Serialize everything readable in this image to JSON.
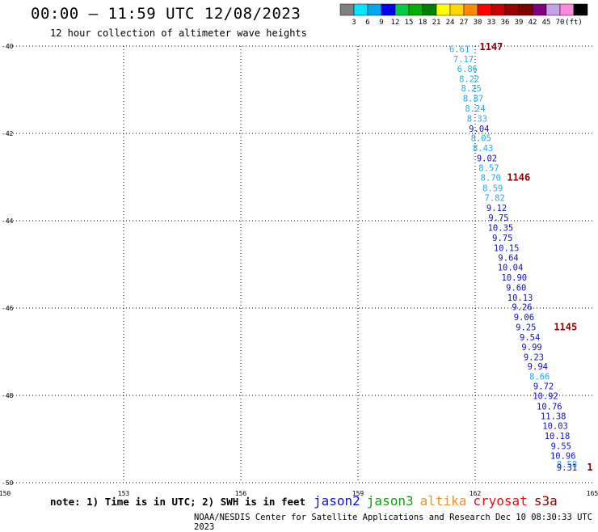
{
  "title": "00:00 – 11:59 UTC 12/08/2023",
  "subtitle": "12 hour collection of altimeter wave heights",
  "note": "note: 1) Time is in UTC; 2) SWH is in feet",
  "credit": "NOAA/NESDIS Center for Satellite Applications and Research   Dec 10 08:30:33 UTC 2023",
  "satellites": [
    {
      "name": "jason2",
      "color": "#1010d0"
    },
    {
      "name": "jason3",
      "color": "#10a010"
    },
    {
      "name": "altika",
      "color": "#f09020"
    },
    {
      "name": "cryosat",
      "color": "#e01010"
    },
    {
      "name": "s3a",
      "color": "#8b0000"
    }
  ],
  "colorscale": {
    "labels": [
      "3",
      "6",
      "9",
      "12",
      "15",
      "18",
      "21",
      "24",
      "27",
      "30",
      "33",
      "36",
      "39",
      "42",
      "45",
      "70",
      "(ft)"
    ],
    "colors": [
      "#808080",
      "#00e5ff",
      "#00a8f0",
      "#0000ff",
      "#00cc44",
      "#00b000",
      "#008000",
      "#ffff00",
      "#ffd700",
      "#ff8c00",
      "#ff0000",
      "#cc0000",
      "#990000",
      "#800000",
      "#800080",
      "#c8a0e8",
      "#ff88dd",
      "#000000"
    ]
  },
  "chart_data": {
    "type": "scatter",
    "xlabel": "",
    "ylabel": "",
    "xlim": [
      150,
      165
    ],
    "ylim": [
      -50,
      -40
    ],
    "x_ticks": [
      150,
      153,
      156,
      159,
      162,
      165
    ],
    "y_ticks": [
      -40,
      -42,
      -44,
      -46,
      -48,
      -50
    ],
    "x_tick_labels": [
      "150",
      "153",
      "156",
      "159",
      "162",
      "165"
    ],
    "y_tick_labels": [
      "-40",
      "-42",
      "-44",
      "-46",
      "-48",
      "-50"
    ],
    "grid": true,
    "series": [
      {
        "points": [
          {
            "lon": 161.6,
            "lat": -40.14,
            "label": "6.61",
            "color": "#22aaee"
          },
          {
            "lon": 161.7,
            "lat": -40.37,
            "label": "7.17",
            "color": "#22aaee"
          },
          {
            "lon": 161.8,
            "lat": -40.59,
            "label": "6.86",
            "color": "#22aaee"
          },
          {
            "lon": 161.85,
            "lat": -40.82,
            "label": "8.22",
            "color": "#22aaee"
          },
          {
            "lon": 161.9,
            "lat": -41.04,
            "label": "8.25",
            "color": "#22aaee"
          },
          {
            "lon": 161.95,
            "lat": -41.27,
            "label": "8.87",
            "color": "#22aaee"
          },
          {
            "lon": 162.0,
            "lat": -41.5,
            "label": "8.24",
            "color": "#22aaee"
          },
          {
            "lon": 162.05,
            "lat": -41.73,
            "label": "8.33",
            "color": "#22aaee"
          },
          {
            "lon": 162.1,
            "lat": -41.96,
            "label": "9.04",
            "color": "#1010c0"
          },
          {
            "lon": 162.15,
            "lat": -42.18,
            "label": "8.05",
            "color": "#22aaee"
          },
          {
            "lon": 162.2,
            "lat": -42.41,
            "label": "8.43",
            "color": "#22aaee"
          },
          {
            "lon": 162.3,
            "lat": -42.64,
            "label": "9.02",
            "color": "#1010c0"
          },
          {
            "lon": 162.35,
            "lat": -42.86,
            "label": "8.57",
            "color": "#22aaee"
          },
          {
            "lon": 162.4,
            "lat": -43.08,
            "label": "8.70",
            "color": "#22aaee"
          },
          {
            "lon": 162.45,
            "lat": -43.32,
            "label": "8.59",
            "color": "#22aaee"
          },
          {
            "lon": 162.5,
            "lat": -43.55,
            "label": "7.82",
            "color": "#22aaee"
          },
          {
            "lon": 162.55,
            "lat": -43.78,
            "label": "9.12",
            "color": "#1010c0"
          },
          {
            "lon": 162.6,
            "lat": -44.0,
            "label": "9.75",
            "color": "#1010c0"
          },
          {
            "lon": 162.65,
            "lat": -44.23,
            "label": "10.35",
            "color": "#1010c0"
          },
          {
            "lon": 162.7,
            "lat": -44.46,
            "label": "9.75",
            "color": "#1010c0"
          },
          {
            "lon": 162.8,
            "lat": -44.69,
            "label": "10.15",
            "color": "#1010c0"
          },
          {
            "lon": 162.85,
            "lat": -44.92,
            "label": "9.64",
            "color": "#1010c0"
          },
          {
            "lon": 162.9,
            "lat": -45.14,
            "label": "10.04",
            "color": "#1010c0"
          },
          {
            "lon": 163.0,
            "lat": -45.37,
            "label": "10.90",
            "color": "#1010c0"
          },
          {
            "lon": 163.05,
            "lat": -45.6,
            "label": "9.60",
            "color": "#1010c0"
          },
          {
            "lon": 163.15,
            "lat": -45.83,
            "label": "10.13",
            "color": "#1010c0"
          },
          {
            "lon": 163.2,
            "lat": -46.05,
            "label": "9.26",
            "color": "#1010c0"
          },
          {
            "lon": 163.25,
            "lat": -46.28,
            "label": "9.06",
            "color": "#1010c0"
          },
          {
            "lon": 163.3,
            "lat": -46.51,
            "label": "9.25",
            "color": "#1010c0"
          },
          {
            "lon": 163.4,
            "lat": -46.74,
            "label": "9.54",
            "color": "#1010c0"
          },
          {
            "lon": 163.45,
            "lat": -46.96,
            "label": "9.99",
            "color": "#1010c0"
          },
          {
            "lon": 163.5,
            "lat": -47.19,
            "label": "9.23",
            "color": "#1010c0"
          },
          {
            "lon": 163.6,
            "lat": -47.41,
            "label": "9.94",
            "color": "#1010c0"
          },
          {
            "lon": 163.65,
            "lat": -47.64,
            "label": "8.66",
            "color": "#22aaee"
          },
          {
            "lon": 163.75,
            "lat": -47.86,
            "label": "9.72",
            "color": "#1010c0"
          },
          {
            "lon": 163.8,
            "lat": -48.08,
            "label": "10.92",
            "color": "#1010c0"
          },
          {
            "lon": 163.9,
            "lat": -48.32,
            "label": "10.76",
            "color": "#1010c0"
          },
          {
            "lon": 164.0,
            "lat": -48.55,
            "label": "11.38",
            "color": "#1010c0"
          },
          {
            "lon": 164.05,
            "lat": -48.77,
            "label": "10.03",
            "color": "#1010c0"
          },
          {
            "lon": 164.1,
            "lat": -49.0,
            "label": "10.18",
            "color": "#1010c0"
          },
          {
            "lon": 164.2,
            "lat": -49.23,
            "label": "9.55",
            "color": "#1010c0"
          },
          {
            "lon": 164.25,
            "lat": -49.45,
            "label": "10.96",
            "color": "#1010c0"
          },
          {
            "lon": 164.35,
            "lat": -49.65,
            "label": "8.58",
            "color": "#22aaee"
          },
          {
            "lon": 164.35,
            "lat": -49.72,
            "label": "9.31",
            "color": "#1010c0"
          }
        ]
      }
    ],
    "annotations": [
      {
        "lon": 161.7,
        "lat": -40.09,
        "label": "1147",
        "color": "#8b0000"
      },
      {
        "lon": 162.4,
        "lat": -43.08,
        "label": "1146",
        "color": "#8b0000"
      },
      {
        "lon": 163.6,
        "lat": -46.51,
        "label": "1145",
        "color": "#8b0000"
      },
      {
        "lon": 164.45,
        "lat": -49.72,
        "label": "1",
        "color": "#8b0000"
      }
    ]
  }
}
